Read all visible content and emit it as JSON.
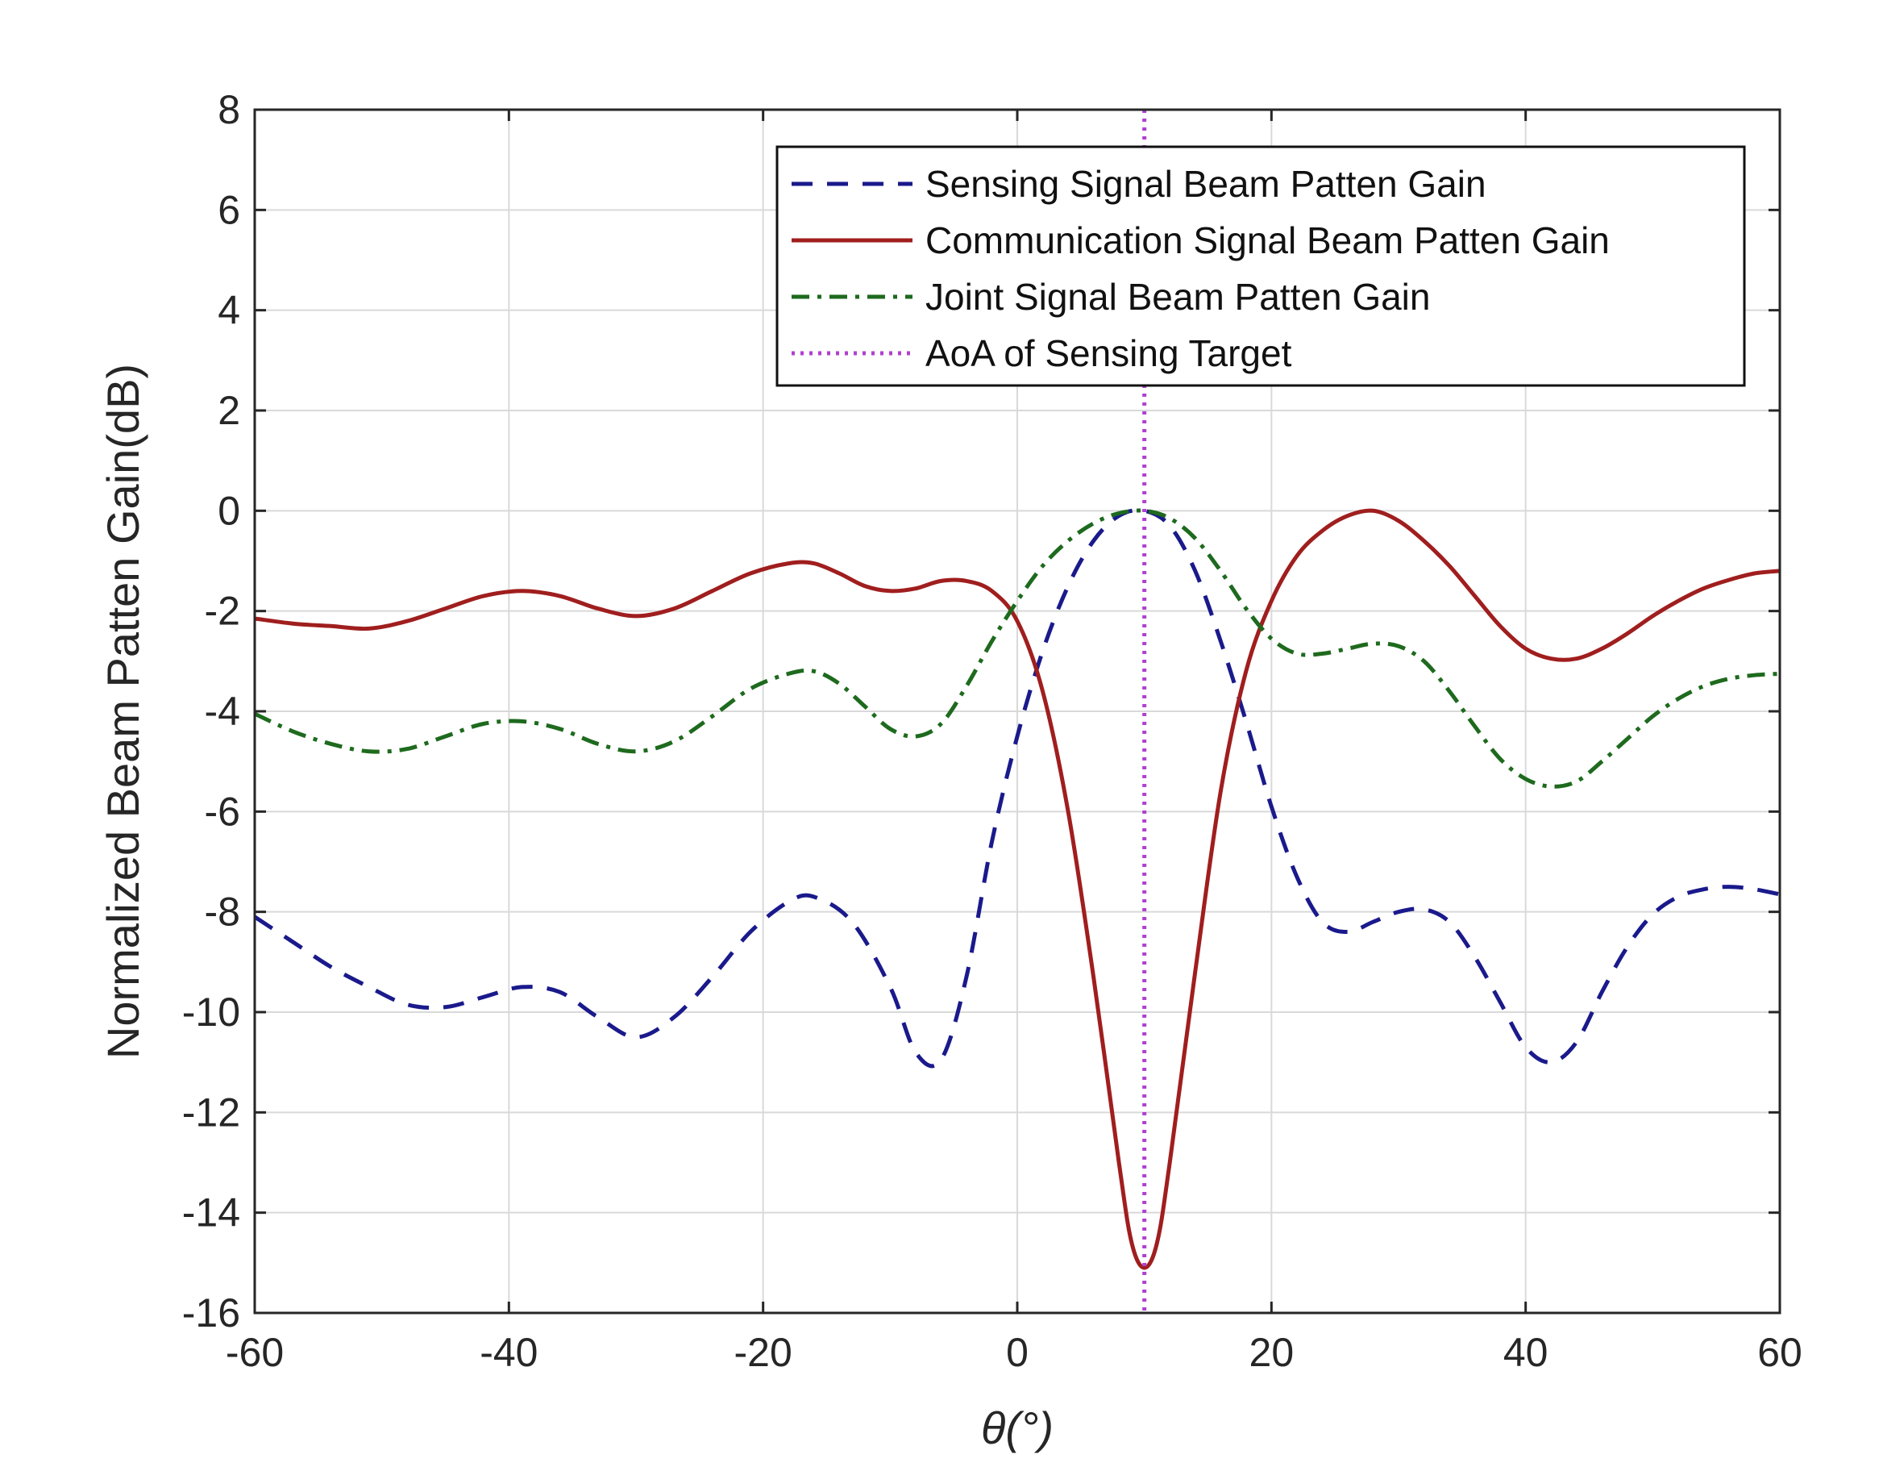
{
  "chart_data": {
    "type": "line",
    "xlabel": "θ(°)",
    "ylabel": "Normalized Beam Patten Gain(dB)",
    "xlim": [
      -60,
      60
    ],
    "ylim": [
      -16,
      8
    ],
    "xticks": [
      -60,
      -40,
      -20,
      0,
      20,
      40,
      60
    ],
    "yticks": [
      -16,
      -14,
      -12,
      -10,
      -8,
      -6,
      -4,
      -2,
      0,
      2,
      4,
      6,
      8
    ],
    "grid": true,
    "legend_position": "top-right",
    "series": [
      {
        "name": "Sensing Signal Beam Patten Gain",
        "color": "#1a1a8c",
        "style": "dashed",
        "x": [
          -60,
          -57,
          -54,
          -51,
          -48,
          -45,
          -42,
          -39,
          -36,
          -33,
          -30,
          -27,
          -24,
          -21,
          -18,
          -16,
          -13,
          -10,
          -8,
          -6,
          -4,
          -2,
          0,
          2,
          4,
          6,
          8,
          10,
          12,
          14,
          16,
          18,
          20,
          22,
          24,
          26,
          28,
          30,
          32,
          34,
          36,
          38,
          40,
          42,
          44,
          46,
          48,
          50,
          52,
          54,
          56,
          58,
          60
        ],
        "y": [
          -8.1,
          -8.6,
          -9.1,
          -9.5,
          -9.85,
          -9.9,
          -9.7,
          -9.5,
          -9.6,
          -10.1,
          -10.5,
          -10.1,
          -9.3,
          -8.4,
          -7.8,
          -7.7,
          -8.2,
          -9.5,
          -10.8,
          -10.95,
          -9.3,
          -6.6,
          -4.5,
          -2.8,
          -1.5,
          -0.6,
          -0.1,
          0.0,
          -0.3,
          -1.2,
          -2.6,
          -4.2,
          -5.9,
          -7.3,
          -8.2,
          -8.4,
          -8.2,
          -8.0,
          -7.95,
          -8.2,
          -8.9,
          -9.8,
          -10.7,
          -11.0,
          -10.6,
          -9.6,
          -8.7,
          -8.05,
          -7.7,
          -7.55,
          -7.5,
          -7.55,
          -7.65
        ]
      },
      {
        "name": "Communication Signal Beam Patten Gain",
        "color": "#a01e1e",
        "style": "solid",
        "x": [
          -60,
          -57,
          -54,
          -51,
          -48,
          -45,
          -42,
          -39,
          -36,
          -33,
          -30,
          -27,
          -24,
          -21,
          -18,
          -16,
          -14,
          -12,
          -10,
          -8,
          -6,
          -4,
          -2,
          0,
          2,
          4,
          6,
          8,
          9,
          10,
          11,
          12,
          14,
          16,
          18,
          20,
          22,
          24,
          26,
          28,
          30,
          32,
          34,
          36,
          38,
          40,
          42,
          44,
          46,
          48,
          50,
          52,
          54,
          56,
          58,
          60
        ],
        "y": [
          -2.15,
          -2.25,
          -2.3,
          -2.35,
          -2.2,
          -1.95,
          -1.7,
          -1.6,
          -1.7,
          -1.95,
          -2.1,
          -1.95,
          -1.6,
          -1.25,
          -1.05,
          -1.05,
          -1.25,
          -1.5,
          -1.6,
          -1.55,
          -1.4,
          -1.4,
          -1.6,
          -2.2,
          -3.6,
          -6.0,
          -9.3,
          -13.0,
          -14.6,
          -15.1,
          -14.6,
          -13.0,
          -9.2,
          -5.6,
          -3.2,
          -1.8,
          -0.9,
          -0.4,
          -0.1,
          0.0,
          -0.2,
          -0.6,
          -1.1,
          -1.7,
          -2.3,
          -2.75,
          -2.95,
          -2.95,
          -2.75,
          -2.45,
          -2.1,
          -1.8,
          -1.55,
          -1.38,
          -1.25,
          -1.2
        ]
      },
      {
        "name": "Joint Signal Beam Patten Gain",
        "color": "#1e6a1e",
        "style": "dashdot",
        "x": [
          -60,
          -57,
          -54,
          -51,
          -48,
          -45,
          -42,
          -39,
          -36,
          -33,
          -30,
          -27,
          -24,
          -21,
          -18,
          -16,
          -14,
          -12,
          -10,
          -8,
          -6,
          -4,
          -2,
          0,
          2,
          4,
          6,
          8,
          10,
          12,
          14,
          16,
          18,
          20,
          22,
          24,
          26,
          28,
          30,
          32,
          34,
          36,
          38,
          40,
          42,
          44,
          46,
          48,
          50,
          52,
          54,
          56,
          58,
          60
        ],
        "y": [
          -4.05,
          -4.4,
          -4.65,
          -4.8,
          -4.75,
          -4.5,
          -4.25,
          -4.2,
          -4.35,
          -4.65,
          -4.8,
          -4.6,
          -4.1,
          -3.55,
          -3.25,
          -3.2,
          -3.45,
          -3.9,
          -4.35,
          -4.5,
          -4.25,
          -3.5,
          -2.6,
          -1.8,
          -1.1,
          -0.6,
          -0.25,
          -0.05,
          0.0,
          -0.15,
          -0.55,
          -1.2,
          -1.95,
          -2.55,
          -2.85,
          -2.85,
          -2.75,
          -2.65,
          -2.7,
          -3.0,
          -3.6,
          -4.3,
          -4.95,
          -5.35,
          -5.5,
          -5.4,
          -5.0,
          -4.55,
          -4.1,
          -3.75,
          -3.5,
          -3.35,
          -3.28,
          -3.25
        ]
      }
    ],
    "reference_line": {
      "name": "AoA of Sensing Target",
      "color": "#b040d0",
      "style": "dotted",
      "x": 10
    }
  }
}
